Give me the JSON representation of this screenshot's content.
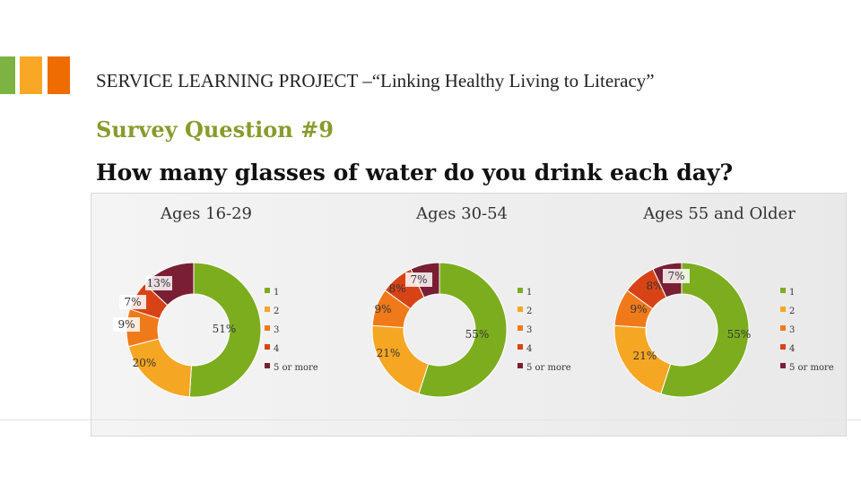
{
  "header": {
    "title": "SERVICE LEARNING PROJECT –“Linking Healthy Living to Literacy”"
  },
  "subtitle": "Survey Question #9",
  "question": "How many glasses of water do you drink each day?",
  "colors": {
    "1": "#7cad1f",
    "2": "#f5a623",
    "3": "#f07a1a",
    "4": "#d84315",
    "5 or more": "#7a1f33"
  },
  "chart_data": [
    {
      "type": "pie",
      "title": "Ages 16-29",
      "categories": [
        "1",
        "2",
        "3",
        "4",
        "5 or more"
      ],
      "values": [
        51,
        20,
        9,
        7,
        13
      ],
      "labels": [
        "51%",
        "20%",
        "9%",
        "7%",
        "13%"
      ]
    },
    {
      "type": "pie",
      "title": "Ages 30-54",
      "categories": [
        "1",
        "2",
        "3",
        "4",
        "5 or more"
      ],
      "values": [
        55,
        21,
        9,
        8,
        7
      ],
      "labels": [
        "55%",
        "21%",
        "9%",
        "8%",
        "7%"
      ]
    },
    {
      "type": "pie",
      "title": "Ages 55 and Older",
      "categories": [
        "1",
        "2",
        "3",
        "4",
        "5 or more"
      ],
      "values": [
        55,
        21,
        9,
        8,
        7
      ],
      "labels": [
        "55%",
        "21%",
        "9%",
        "8%",
        "7%"
      ]
    }
  ]
}
